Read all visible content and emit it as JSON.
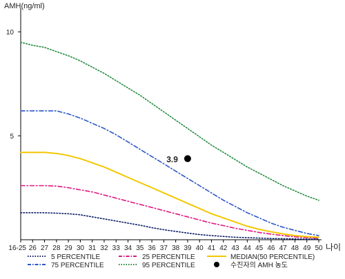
{
  "chart_data": {
    "type": "line",
    "ylabel": "AMH(ng/ml)",
    "xlabel": "나이",
    "ylim": [
      0,
      11
    ],
    "y_ticks": [
      5,
      10
    ],
    "grid": false,
    "legend_position": "bottom",
    "categories": [
      "16-25",
      "26",
      "27",
      "28",
      "29",
      "30",
      "31",
      "32",
      "33",
      "34",
      "35",
      "36",
      "37",
      "38",
      "39",
      "40",
      "41",
      "42",
      "43",
      "44",
      "45",
      "46",
      "47",
      "48",
      "49",
      "50"
    ],
    "series": [
      {
        "name": "5 PERCENTILE",
        "color": "#0a1a66",
        "style": "dotted",
        "values": [
          1.3,
          1.3,
          1.3,
          1.28,
          1.25,
          1.2,
          1.1,
          1.0,
          0.9,
          0.8,
          0.7,
          0.58,
          0.48,
          0.4,
          0.32,
          0.25,
          0.2,
          0.16,
          0.12,
          0.1,
          0.08,
          0.06,
          0.05,
          0.04,
          0.03,
          0.03
        ]
      },
      {
        "name": "25 PERCENTILE",
        "color": "#e0157f",
        "style": "dashdot",
        "values": [
          2.6,
          2.6,
          2.6,
          2.58,
          2.5,
          2.4,
          2.3,
          2.15,
          2.0,
          1.85,
          1.7,
          1.55,
          1.4,
          1.25,
          1.1,
          0.95,
          0.8,
          0.68,
          0.55,
          0.45,
          0.35,
          0.27,
          0.2,
          0.14,
          0.1,
          0.08
        ]
      },
      {
        "name": "MEDIAN(50 PERCENTILE)",
        "color": "#f2c700",
        "style": "solid",
        "values": [
          4.2,
          4.2,
          4.2,
          4.15,
          4.05,
          3.9,
          3.7,
          3.5,
          3.25,
          3.0,
          2.75,
          2.5,
          2.25,
          2.0,
          1.75,
          1.5,
          1.25,
          1.05,
          0.85,
          0.65,
          0.5,
          0.38,
          0.28,
          0.2,
          0.15,
          0.12
        ]
      },
      {
        "name": "75 PERCENTILE",
        "color": "#2a56c8",
        "style": "dashdot",
        "values": [
          6.2,
          6.2,
          6.2,
          6.2,
          6.05,
          5.85,
          5.6,
          5.35,
          5.05,
          4.7,
          4.35,
          4.0,
          3.65,
          3.3,
          2.95,
          2.6,
          2.25,
          1.9,
          1.6,
          1.3,
          1.05,
          0.8,
          0.6,
          0.45,
          0.3,
          0.2
        ]
      },
      {
        "name": "95 PERCENTILE",
        "color": "#1f8a3a",
        "style": "dotted",
        "values": [
          9.5,
          9.35,
          9.25,
          9.05,
          8.85,
          8.6,
          8.3,
          8.0,
          7.65,
          7.3,
          6.95,
          6.55,
          6.15,
          5.75,
          5.35,
          4.95,
          4.55,
          4.2,
          3.85,
          3.5,
          3.2,
          2.9,
          2.6,
          2.35,
          2.1,
          1.9
        ]
      }
    ],
    "legend": [
      {
        "name": "5 PERCENTILE",
        "color": "#0a1a66",
        "style": "dotted"
      },
      {
        "name": "75 PERCENTILE",
        "color": "#2a56c8",
        "style": "dashdot"
      },
      {
        "name": "25 PERCENTILE",
        "color": "#e0157f",
        "style": "dashdot"
      },
      {
        "name": "95 PERCENTILE",
        "color": "#1f8a3a",
        "style": "dotted"
      },
      {
        "name": "MEDIAN(50 PERCENTILE)",
        "color": "#f2c700",
        "style": "solid"
      },
      {
        "name": "수진자의 AMH 농도",
        "color": "#000000",
        "style": "marker"
      }
    ],
    "patient_point": {
      "x": "39",
      "y": 3.9,
      "label": "3.9",
      "color": "#000000"
    }
  }
}
